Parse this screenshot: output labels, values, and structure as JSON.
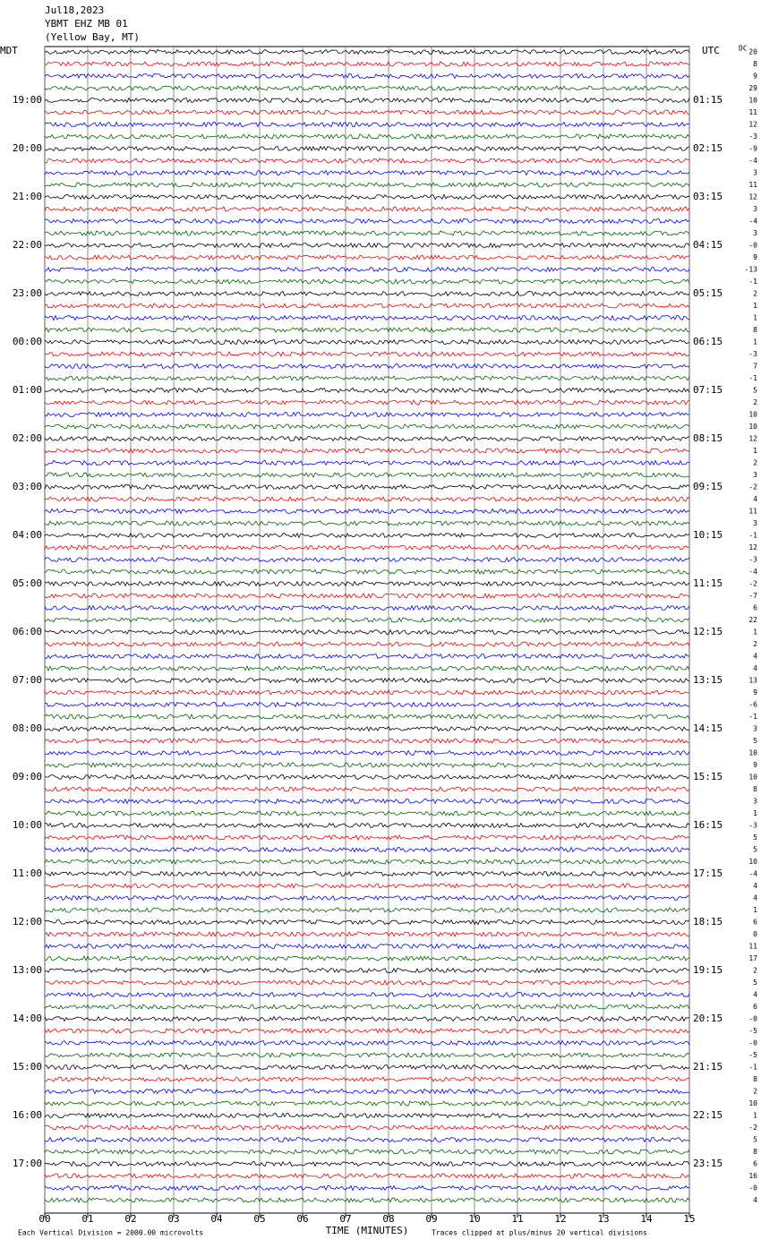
{
  "header": {
    "date": "Jul18,2023",
    "station": "YBMT EHZ MB 01",
    "location": "(Yellow Bay, MT)"
  },
  "left_axis": {
    "title": "MDT",
    "labels": [
      "19:00",
      "20:00",
      "21:00",
      "22:00",
      "23:00",
      "00:00",
      "01:00",
      "02:00",
      "03:00",
      "04:00",
      "05:00",
      "06:00",
      "07:00",
      "08:00",
      "09:00",
      "10:00",
      "11:00",
      "12:00",
      "13:00",
      "14:00",
      "15:00",
      "16:00",
      "17:00"
    ]
  },
  "right_axis": {
    "title": "UTC",
    "labels": [
      "01:15",
      "02:15",
      "03:15",
      "04:15",
      "05:15",
      "06:15",
      "07:15",
      "08:15",
      "09:15",
      "10:15",
      "11:15",
      "12:15",
      "13:15",
      "14:15",
      "15:15",
      "16:15",
      "17:15",
      "18:15",
      "19:15",
      "20:15",
      "21:15",
      "22:15",
      "23:15"
    ]
  },
  "dc_offsets": {
    "title": "DC",
    "values": [
      "20",
      "8",
      "9",
      "29",
      "10",
      "11",
      "12",
      "-3",
      "-9",
      "-4",
      "3",
      "11",
      "12",
      "3",
      "-4",
      "3",
      "-0",
      "9",
      "-13",
      "-1",
      "2",
      "1",
      "1",
      "8",
      "1",
      "-3",
      "7",
      "-1",
      "5",
      "2",
      "10",
      "10",
      "12",
      "1",
      "2",
      "3",
      "-2",
      "4",
      "11",
      "3",
      "-1",
      "12",
      "-3",
      "-4",
      "-2",
      "-7",
      "6",
      "22",
      "1",
      "2",
      "4",
      "4",
      "13",
      "9",
      "-6",
      "-1",
      "3",
      "5",
      "10",
      "9",
      "10",
      "8",
      "3",
      "1",
      "-3",
      "5",
      "5",
      "10",
      "-4",
      "4",
      "4",
      "1",
      "6",
      "0",
      "11",
      "17",
      "2",
      "5",
      "4",
      "6",
      "-0",
      "-5",
      "-0",
      "-5",
      "-1",
      "8",
      "2",
      "10",
      "1",
      "-2",
      "5",
      "8",
      "6",
      "16",
      "-0",
      "4"
    ]
  },
  "x_axis": {
    "title": "TIME (MINUTES)",
    "xlim": [
      0,
      15
    ],
    "xticks": [
      {
        "value": 0,
        "label": "00"
      },
      {
        "value": 1,
        "label": "01"
      },
      {
        "value": 2,
        "label": "02"
      },
      {
        "value": 3,
        "label": "03"
      },
      {
        "value": 4,
        "label": "04"
      },
      {
        "value": 5,
        "label": "05"
      },
      {
        "value": 6,
        "label": "06"
      },
      {
        "value": 7,
        "label": "07"
      },
      {
        "value": 8,
        "label": "08"
      },
      {
        "value": 9,
        "label": "09"
      },
      10,
      11,
      12,
      13,
      14,
      15
    ]
  },
  "footer": {
    "left": "Each Vertical Division = 2000.00 microvolts",
    "right": "Traces clipped at plus/minus 20 vertical divisions"
  }
}
